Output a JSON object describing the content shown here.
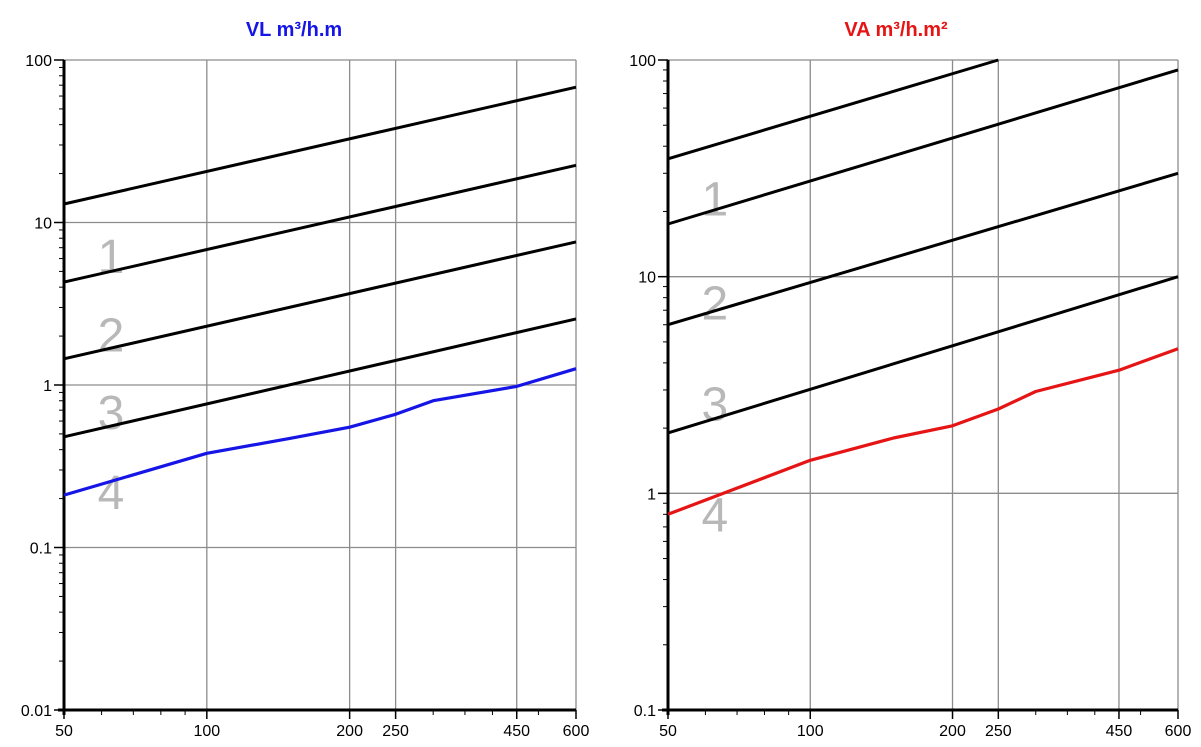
{
  "chart_data": [
    {
      "type": "line",
      "title": "VL m³/h.m",
      "title_color": "#1515e6",
      "x_scale": "log",
      "y_scale": "log",
      "xlim": [
        50,
        600
      ],
      "ylim": [
        0.01,
        100
      ],
      "x_ticks": [
        50,
        100,
        200,
        250,
        450,
        600
      ],
      "x_tick_labels": [
        "50",
        "100",
        "200",
        "250",
        "450",
        "600"
      ],
      "y_ticks": [
        0.01,
        0.1,
        1,
        10,
        100
      ],
      "y_tick_labels": [
        "0.01",
        "0.1",
        "1",
        "10",
        "100"
      ],
      "grid": true,
      "class_lines": [
        {
          "x": [
            50,
            600
          ],
          "y": [
            13,
            68
          ],
          "color": "#000000"
        },
        {
          "x": [
            50,
            600
          ],
          "y": [
            4.3,
            22.5
          ],
          "color": "#000000"
        },
        {
          "x": [
            50,
            600
          ],
          "y": [
            1.45,
            7.6
          ],
          "color": "#000000"
        },
        {
          "x": [
            50,
            600
          ],
          "y": [
            0.48,
            2.55
          ],
          "color": "#000000"
        }
      ],
      "class_labels": [
        {
          "text": "1",
          "x": 55,
          "y": 6.2
        },
        {
          "text": "2",
          "x": 55,
          "y": 2.05
        },
        {
          "text": "3",
          "x": 55,
          "y": 0.68
        },
        {
          "text": "4",
          "x": 55,
          "y": 0.22
        }
      ],
      "series": [
        {
          "x": [
            50,
            100,
            150,
            200,
            250,
            300,
            450,
            600
          ],
          "y": [
            0.21,
            0.38,
            0.47,
            0.55,
            0.66,
            0.8,
            0.98,
            1.26
          ],
          "color": "#1515e6"
        }
      ]
    },
    {
      "type": "line",
      "title": "VA m³/h.m²",
      "title_color": "#e61515",
      "x_scale": "log",
      "y_scale": "log",
      "xlim": [
        50,
        600
      ],
      "ylim": [
        0.1,
        100
      ],
      "x_ticks": [
        50,
        100,
        200,
        250,
        450,
        600
      ],
      "x_tick_labels": [
        "50",
        "100",
        "200",
        "250",
        "450",
        "600"
      ],
      "y_ticks": [
        0.1,
        1,
        10,
        100
      ],
      "y_tick_labels": [
        "0.1",
        "1",
        "10",
        "100"
      ],
      "grid": true,
      "class_lines": [
        {
          "x": [
            50,
            250
          ],
          "y": [
            35,
            100
          ],
          "color": "#000000"
        },
        {
          "x": [
            50,
            600
          ],
          "y": [
            17.5,
            90
          ],
          "color": "#000000"
        },
        {
          "x": [
            50,
            600
          ],
          "y": [
            6,
            30
          ],
          "color": "#000000"
        },
        {
          "x": [
            50,
            600
          ],
          "y": [
            1.9,
            10
          ],
          "color": "#000000"
        }
      ],
      "class_labels": [
        {
          "text": "1",
          "x": 55,
          "y": 23
        },
        {
          "text": "2",
          "x": 55,
          "y": 7.6
        },
        {
          "text": "3",
          "x": 55,
          "y": 2.6
        },
        {
          "text": "4",
          "x": 55,
          "y": 0.8
        }
      ],
      "series": [
        {
          "x": [
            50,
            100,
            150,
            200,
            250,
            300,
            450,
            600
          ],
          "y": [
            0.8,
            1.42,
            1.8,
            2.05,
            2.45,
            2.95,
            3.7,
            4.65
          ],
          "color": "#e61515"
        }
      ]
    }
  ]
}
